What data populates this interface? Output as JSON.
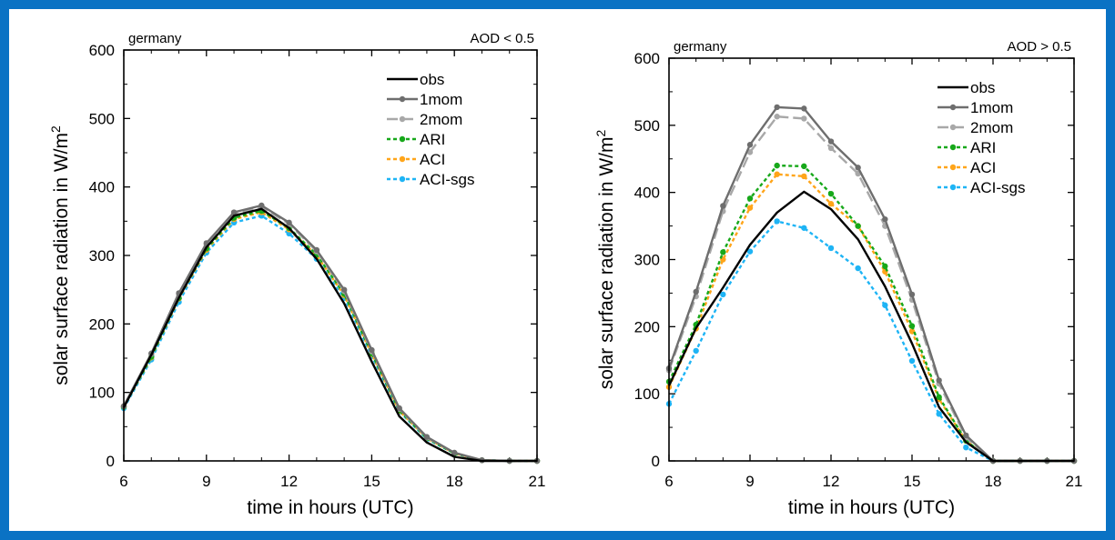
{
  "colors": {
    "border": "#0a72c4",
    "obs": "#000000",
    "onemom": "#6e6e6e",
    "twomom": "#a8a8a8",
    "ARI": "#17a81a",
    "ACI": "#ffa51a",
    "ACI_sgs": "#1eb4f5"
  },
  "chart_data": [
    {
      "type": "line",
      "title_left": "germany",
      "title_right": "AOD < 0.5",
      "xlabel": "time in hours (UTC)",
      "ylabel": "solar surface radiation in W/m",
      "ylabel_sup": "2",
      "xlim": [
        6,
        21
      ],
      "ylim": [
        0,
        600
      ],
      "xticks": [
        6,
        9,
        12,
        15,
        18,
        21
      ],
      "yticks": [
        0,
        100,
        200,
        300,
        400,
        500,
        600
      ],
      "legend_position": "top-right",
      "x": [
        6,
        7,
        8,
        9,
        10,
        11,
        12,
        13,
        14,
        15,
        16,
        17,
        18,
        19,
        20,
        21
      ],
      "series": [
        {
          "name": "obs",
          "color_key": "obs",
          "style": "solid",
          "markers": false,
          "values": [
            78,
            155,
            238,
            312,
            358,
            368,
            340,
            295,
            230,
            145,
            65,
            27,
            6,
            0,
            0,
            0
          ]
        },
        {
          "name": "1mom",
          "color_key": "onemom",
          "style": "solid",
          "markers": true,
          "values": [
            80,
            157,
            245,
            318,
            363,
            373,
            348,
            308,
            250,
            162,
            77,
            35,
            12,
            1,
            0,
            0
          ]
        },
        {
          "name": "2mom",
          "color_key": "twomom",
          "style": "dashed",
          "markers": true,
          "values": [
            80,
            156,
            243,
            316,
            361,
            371,
            346,
            306,
            248,
            160,
            76,
            34,
            12,
            1,
            0,
            0
          ]
        },
        {
          "name": "ARI",
          "color_key": "ARI",
          "style": "dotted",
          "markers": true,
          "values": [
            79,
            152,
            238,
            310,
            355,
            365,
            340,
            301,
            244,
            157,
            74,
            33,
            11,
            1,
            0,
            0
          ]
        },
        {
          "name": "ACI",
          "color_key": "ACI",
          "style": "dotted",
          "markers": true,
          "values": [
            79,
            151,
            237,
            308,
            353,
            363,
            338,
            300,
            242,
            156,
            73,
            33,
            11,
            1,
            0,
            0
          ]
        },
        {
          "name": "ACI-sgs",
          "color_key": "ACI_sgs",
          "style": "dotted",
          "markers": true,
          "values": [
            77,
            148,
            232,
            304,
            348,
            358,
            332,
            295,
            238,
            153,
            72,
            32,
            11,
            1,
            0,
            0
          ]
        }
      ]
    },
    {
      "type": "line",
      "title_left": "germany",
      "title_right": "AOD > 0.5",
      "xlabel": "time in hours (UTC)",
      "ylabel": "solar surface radiation in W/m",
      "ylabel_sup": "2",
      "xlim": [
        6,
        21
      ],
      "ylim": [
        0,
        600
      ],
      "xticks": [
        6,
        9,
        12,
        15,
        18,
        21
      ],
      "yticks": [
        0,
        100,
        200,
        300,
        400,
        500,
        600
      ],
      "legend_position": "top-right",
      "x": [
        6,
        7,
        8,
        9,
        10,
        11,
        12,
        13,
        14,
        15,
        16,
        17,
        18,
        19,
        20,
        21
      ],
      "series": [
        {
          "name": "obs",
          "color_key": "obs",
          "style": "solid",
          "markers": false,
          "values": [
            112,
            198,
            258,
            322,
            370,
            401,
            375,
            330,
            260,
            175,
            80,
            28,
            0,
            0,
            0,
            0
          ]
        },
        {
          "name": "1mom",
          "color_key": "onemom",
          "style": "solid",
          "markers": true,
          "values": [
            138,
            252,
            380,
            471,
            527,
            525,
            476,
            437,
            360,
            248,
            120,
            38,
            0,
            0,
            0,
            0
          ]
        },
        {
          "name": "2mom",
          "color_key": "twomom",
          "style": "dashed",
          "markers": true,
          "values": [
            135,
            245,
            372,
            460,
            513,
            510,
            466,
            428,
            350,
            240,
            115,
            35,
            0,
            0,
            0,
            0
          ]
        },
        {
          "name": "ARI",
          "color_key": "ARI",
          "style": "dotted",
          "markers": true,
          "values": [
            118,
            203,
            311,
            391,
            440,
            439,
            398,
            350,
            290,
            201,
            95,
            30,
            0,
            0,
            0,
            0
          ]
        },
        {
          "name": "ACI",
          "color_key": "ACI",
          "style": "dotted",
          "markers": true,
          "values": [
            110,
            197,
            300,
            377,
            427,
            424,
            383,
            350,
            282,
            193,
            92,
            30,
            0,
            0,
            0,
            0
          ]
        },
        {
          "name": "ACI-sgs",
          "color_key": "ACI_sgs",
          "style": "dotted",
          "markers": true,
          "values": [
            85,
            164,
            248,
            312,
            357,
            347,
            317,
            287,
            232,
            149,
            70,
            20,
            0,
            0,
            0,
            0
          ]
        }
      ]
    }
  ]
}
